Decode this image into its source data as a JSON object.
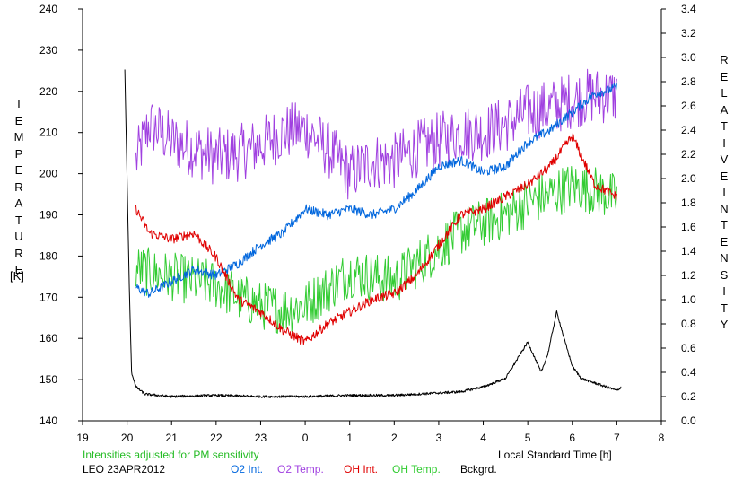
{
  "chart_data": {
    "type": "line",
    "left_axis": {
      "label_letters": [
        "T",
        "E",
        "M",
        "P",
        "E",
        "R",
        "A",
        "T",
        "U",
        "R",
        "E"
      ],
      "unit": "[K]",
      "ylim": [
        140,
        240
      ],
      "ticks": [
        "140",
        "150",
        "160",
        "170",
        "180",
        "190",
        "200",
        "210",
        "220",
        "230",
        "240"
      ]
    },
    "right_axis": {
      "label_letters_1": [
        "R",
        "E",
        "L",
        "A",
        "T",
        "I",
        "V",
        "E"
      ],
      "label_letters_2": [
        "I",
        "N",
        "T",
        "E",
        "N",
        "S",
        "I",
        "T",
        "Y"
      ],
      "ylim": [
        0.0,
        3.4
      ],
      "ticks": [
        "0.0",
        "0.2",
        "0.4",
        "0.6",
        "0.8",
        "1.0",
        "1.2",
        "1.4",
        "1.6",
        "1.8",
        "2.0",
        "2.2",
        "2.4",
        "2.6",
        "2.8",
        "3.0",
        "3.2",
        "3.4"
      ]
    },
    "x_axis": {
      "label": "Local Standard Time [h]",
      "ticks": [
        "19",
        "20",
        "21",
        "22",
        "23",
        "0",
        "1",
        "2",
        "3",
        "4",
        "5",
        "6",
        "7",
        "8"
      ]
    },
    "note": "Intensities adjusted for PM sensitivity",
    "site_date": "LEO 23APR2012",
    "legend": [
      "O2 Int.",
      "O2 Temp.",
      "OH Int.",
      "OH Temp.",
      "Bckgrd."
    ],
    "colors": {
      "o2_int": "#0066dd",
      "o2_temp": "#a040e0",
      "oh_int": "#e00000",
      "oh_temp": "#33cc33",
      "bckgrd": "#000000",
      "note": "#22bb22"
    },
    "series": [
      {
        "name": "O2 Temp.",
        "axis": "left",
        "x": [
          20.2,
          20.5,
          21.0,
          21.5,
          22.0,
          22.5,
          23.0,
          23.5,
          24.0,
          24.5,
          25.0,
          25.5,
          26.0,
          26.5,
          27.0,
          27.5,
          28.0,
          28.5,
          29.0,
          29.5,
          30.0,
          30.5,
          31.0
        ],
        "y": [
          203,
          212,
          208,
          206,
          204,
          205,
          207,
          210,
          211,
          206,
          200,
          203,
          203,
          206,
          208,
          210,
          210,
          212,
          215,
          216,
          218,
          219,
          219
        ]
      },
      {
        "name": "OH Temp.",
        "axis": "left",
        "x": [
          20.2,
          20.5,
          21.0,
          21.5,
          22.0,
          22.5,
          23.0,
          23.5,
          24.0,
          24.5,
          25.0,
          25.5,
          26.0,
          26.5,
          27.0,
          27.5,
          28.0,
          28.5,
          29.0,
          29.5,
          30.0,
          30.5,
          31.0
        ],
        "y": [
          177,
          176,
          175,
          174,
          173,
          170,
          168,
          167,
          168,
          172,
          176,
          175,
          174,
          178,
          182,
          186,
          188,
          190,
          193,
          195,
          197,
          196,
          194
        ]
      },
      {
        "name": "O2 Int.",
        "axis": "right",
        "x": [
          20.2,
          20.5,
          21.0,
          21.5,
          22.0,
          22.5,
          23.0,
          23.5,
          24.0,
          24.5,
          25.0,
          25.5,
          26.0,
          26.5,
          27.0,
          27.5,
          28.0,
          28.5,
          29.0,
          29.5,
          30.0,
          30.5,
          31.0
        ],
        "y": [
          1.1,
          1.05,
          1.15,
          1.25,
          1.2,
          1.3,
          1.45,
          1.55,
          1.75,
          1.7,
          1.75,
          1.7,
          1.75,
          1.9,
          2.1,
          2.15,
          2.05,
          2.1,
          2.3,
          2.4,
          2.55,
          2.7,
          2.75
        ]
      },
      {
        "name": "OH Int.",
        "axis": "right",
        "x": [
          20.2,
          20.5,
          21.0,
          21.5,
          22.0,
          22.5,
          23.0,
          23.5,
          24.0,
          24.5,
          25.0,
          25.5,
          26.0,
          26.5,
          27.0,
          27.5,
          28.0,
          28.5,
          29.0,
          29.5,
          30.0,
          30.5,
          31.0
        ],
        "y": [
          1.75,
          1.55,
          1.5,
          1.55,
          1.35,
          1.0,
          0.9,
          0.75,
          0.65,
          0.8,
          0.9,
          1.0,
          1.05,
          1.2,
          1.45,
          1.7,
          1.75,
          1.85,
          1.95,
          2.1,
          2.35,
          1.95,
          1.85
        ]
      },
      {
        "name": "Bckgrd.",
        "axis": "right",
        "x": [
          19.95,
          20.05,
          20.1,
          20.2,
          20.4,
          21.0,
          22.0,
          23.0,
          24.0,
          25.0,
          26.0,
          27.0,
          27.5,
          28.0,
          28.5,
          29.0,
          29.3,
          29.45,
          29.65,
          29.8,
          30.0,
          30.2,
          30.6,
          31.0,
          31.1
        ],
        "y": [
          2.9,
          1.1,
          0.4,
          0.28,
          0.22,
          0.2,
          0.21,
          0.2,
          0.2,
          0.21,
          0.21,
          0.23,
          0.24,
          0.28,
          0.35,
          0.65,
          0.4,
          0.55,
          0.9,
          0.7,
          0.45,
          0.35,
          0.3,
          0.25,
          0.28
        ]
      }
    ]
  }
}
